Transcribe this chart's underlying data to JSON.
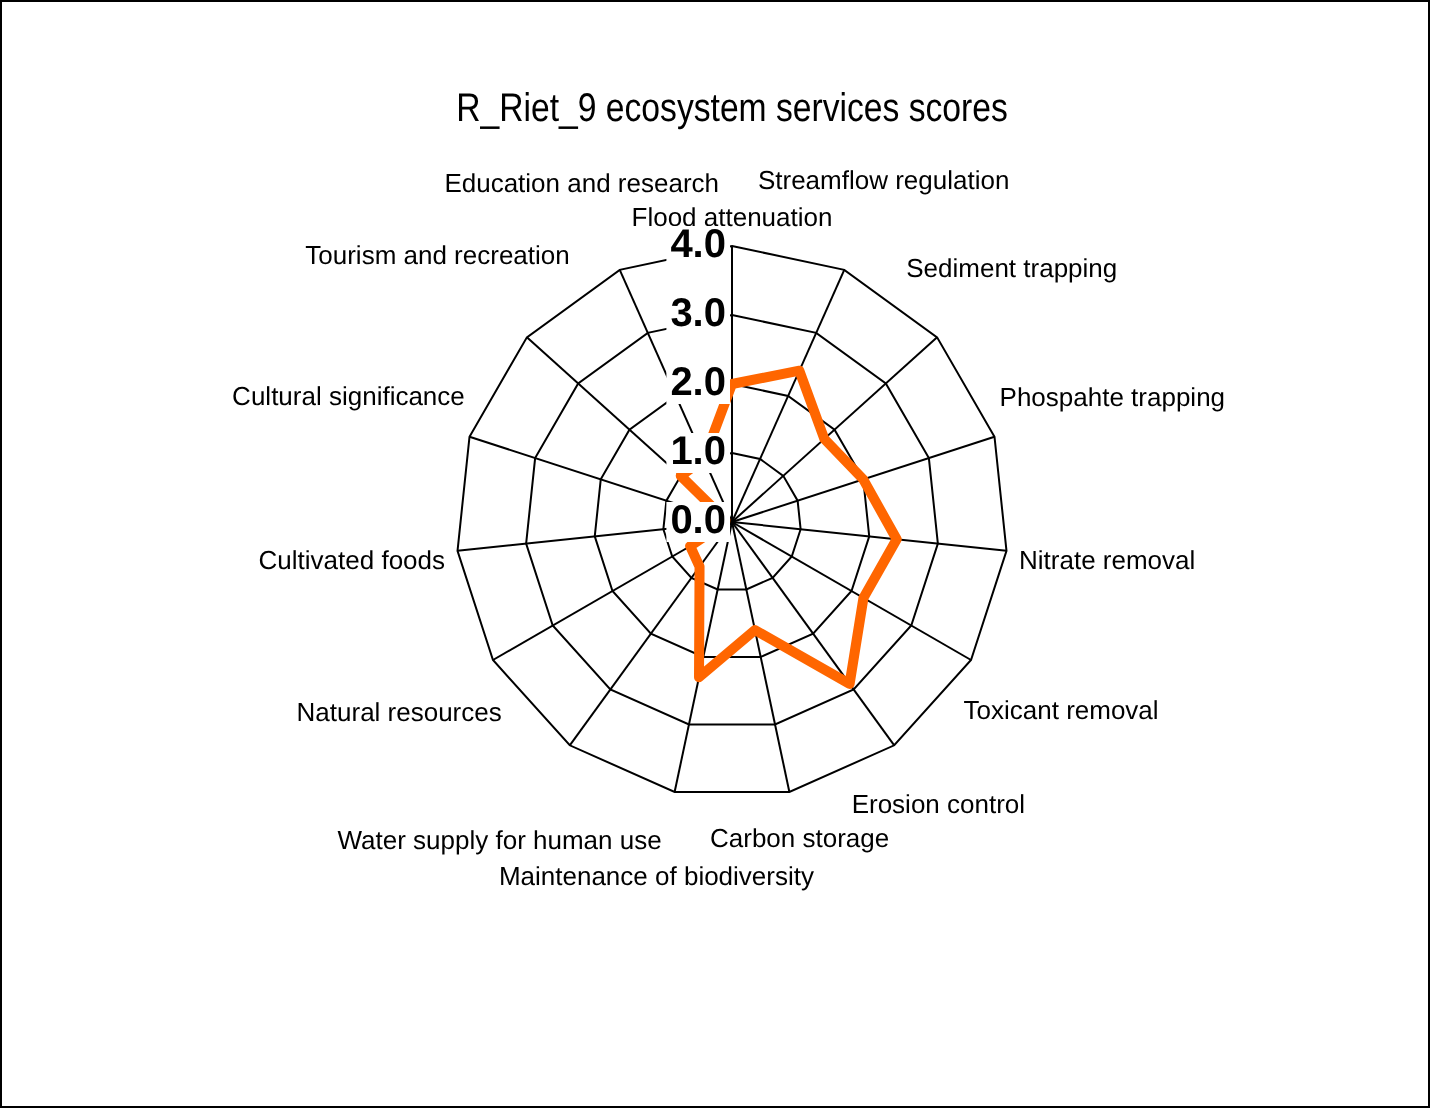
{
  "chart_data": {
    "type": "radar",
    "title": "R_Riet_9 ecosystem services scores",
    "categories": [
      "Flood attenuation",
      "Streamflow regulation",
      "Sediment trapping",
      "Phospahte trapping",
      "Nitrate removal",
      "Toxicant removal",
      "Erosion control",
      "Carbon storage",
      "Maintenance of biodiversity",
      "Water supply for human use",
      "Natural resources",
      "Cultivated foods",
      "Cultural significance",
      "Tourism and recreation",
      "Education and research"
    ],
    "series": [
      {
        "color": "#ff6600",
        "values": [
          2.0,
          2.4,
          1.8,
          2.0,
          2.4,
          2.2,
          2.9,
          1.6,
          2.3,
          0.8,
          0.7,
          0.1,
          0.1,
          1.0,
          1.0
        ]
      }
    ],
    "ylim": [
      0,
      4
    ],
    "yticks": [
      {
        "value": 0,
        "label": "0.0"
      },
      {
        "value": 1,
        "label": "1.0"
      },
      {
        "value": 2,
        "label": "2.0"
      },
      {
        "value": 3,
        "label": "3.0"
      },
      {
        "value": 4,
        "label": "4.0"
      }
    ],
    "grid": true,
    "legend": false,
    "marker": "none",
    "line_style": "solid"
  }
}
